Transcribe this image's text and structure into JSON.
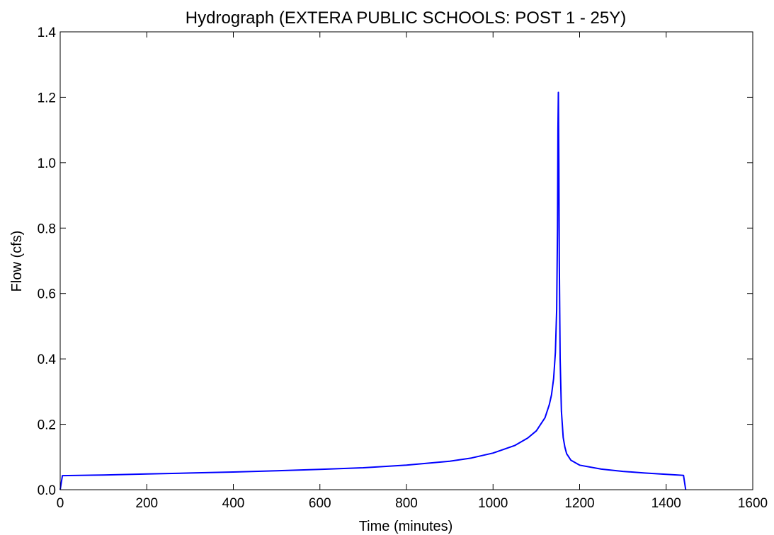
{
  "chart_data": {
    "type": "line",
    "title": "Hydrograph (EXTERA PUBLIC SCHOOLS: POST 1 - 25Y)",
    "xlabel": "Time (minutes)",
    "ylabel": "Flow (cfs)",
    "xlim": [
      0,
      1600
    ],
    "ylim": [
      0,
      1.4
    ],
    "xticks": [
      0,
      200,
      400,
      600,
      800,
      1000,
      1200,
      1400,
      1600
    ],
    "xtick_labels": [
      "0",
      "200",
      "400",
      "600",
      "800",
      "1000",
      "1200",
      "1400",
      "1600"
    ],
    "yticks": [
      0.0,
      0.2,
      0.4,
      0.6,
      0.8,
      1.0,
      1.2,
      1.4
    ],
    "ytick_labels": [
      "0.0",
      "0.2",
      "0.4",
      "0.6",
      "0.8",
      "1.0",
      "1.2",
      "1.4"
    ],
    "grid": false,
    "line_color": "#0000ff",
    "series": [
      {
        "x": [
          0,
          5,
          100,
          200,
          300,
          400,
          500,
          600,
          700,
          800,
          900,
          950,
          1000,
          1050,
          1080,
          1100,
          1120,
          1130,
          1135,
          1140,
          1144,
          1147,
          1149,
          1150,
          1151,
          1152,
          1153,
          1155,
          1158,
          1162,
          1166,
          1170,
          1180,
          1200,
          1250,
          1300,
          1350,
          1400,
          1440,
          1445
        ],
        "y": [
          0.0,
          0.043,
          0.045,
          0.048,
          0.051,
          0.054,
          0.058,
          0.062,
          0.067,
          0.075,
          0.087,
          0.097,
          0.112,
          0.135,
          0.158,
          0.18,
          0.22,
          0.26,
          0.29,
          0.34,
          0.42,
          0.55,
          0.8,
          1.1,
          1.215,
          1.0,
          0.7,
          0.4,
          0.24,
          0.16,
          0.13,
          0.11,
          0.09,
          0.075,
          0.063,
          0.056,
          0.051,
          0.047,
          0.044,
          0.0
        ]
      }
    ]
  }
}
